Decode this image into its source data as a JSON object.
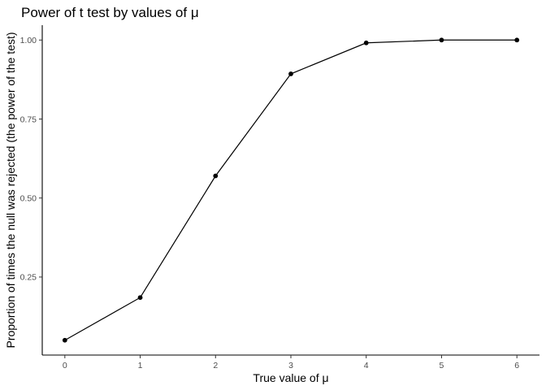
{
  "chart_data": {
    "type": "line",
    "title": "Power of t test by values of μ",
    "xlabel": "True value of μ",
    "ylabel": "Proportion of times the null was rejected (the power of the test)",
    "x": [
      0,
      1,
      2,
      3,
      4,
      5,
      6
    ],
    "y": [
      0.05,
      0.185,
      0.57,
      0.893,
      0.991,
      1.0,
      1.0
    ],
    "xlim": [
      -0.3,
      6.3
    ],
    "ylim": [
      0.003,
      1.047
    ],
    "xticks": [
      0,
      1,
      2,
      3,
      4,
      5,
      6
    ],
    "xtick_labels": [
      "0",
      "1",
      "2",
      "3",
      "4",
      "5",
      "6"
    ],
    "yticks": [
      0.25,
      0.5,
      0.75,
      1.0
    ],
    "ytick_labels": [
      "0.25",
      "0.50",
      "0.75",
      "1.00"
    ],
    "grid": false,
    "markers": true,
    "line_color": "#000000",
    "background": "#ffffff"
  }
}
